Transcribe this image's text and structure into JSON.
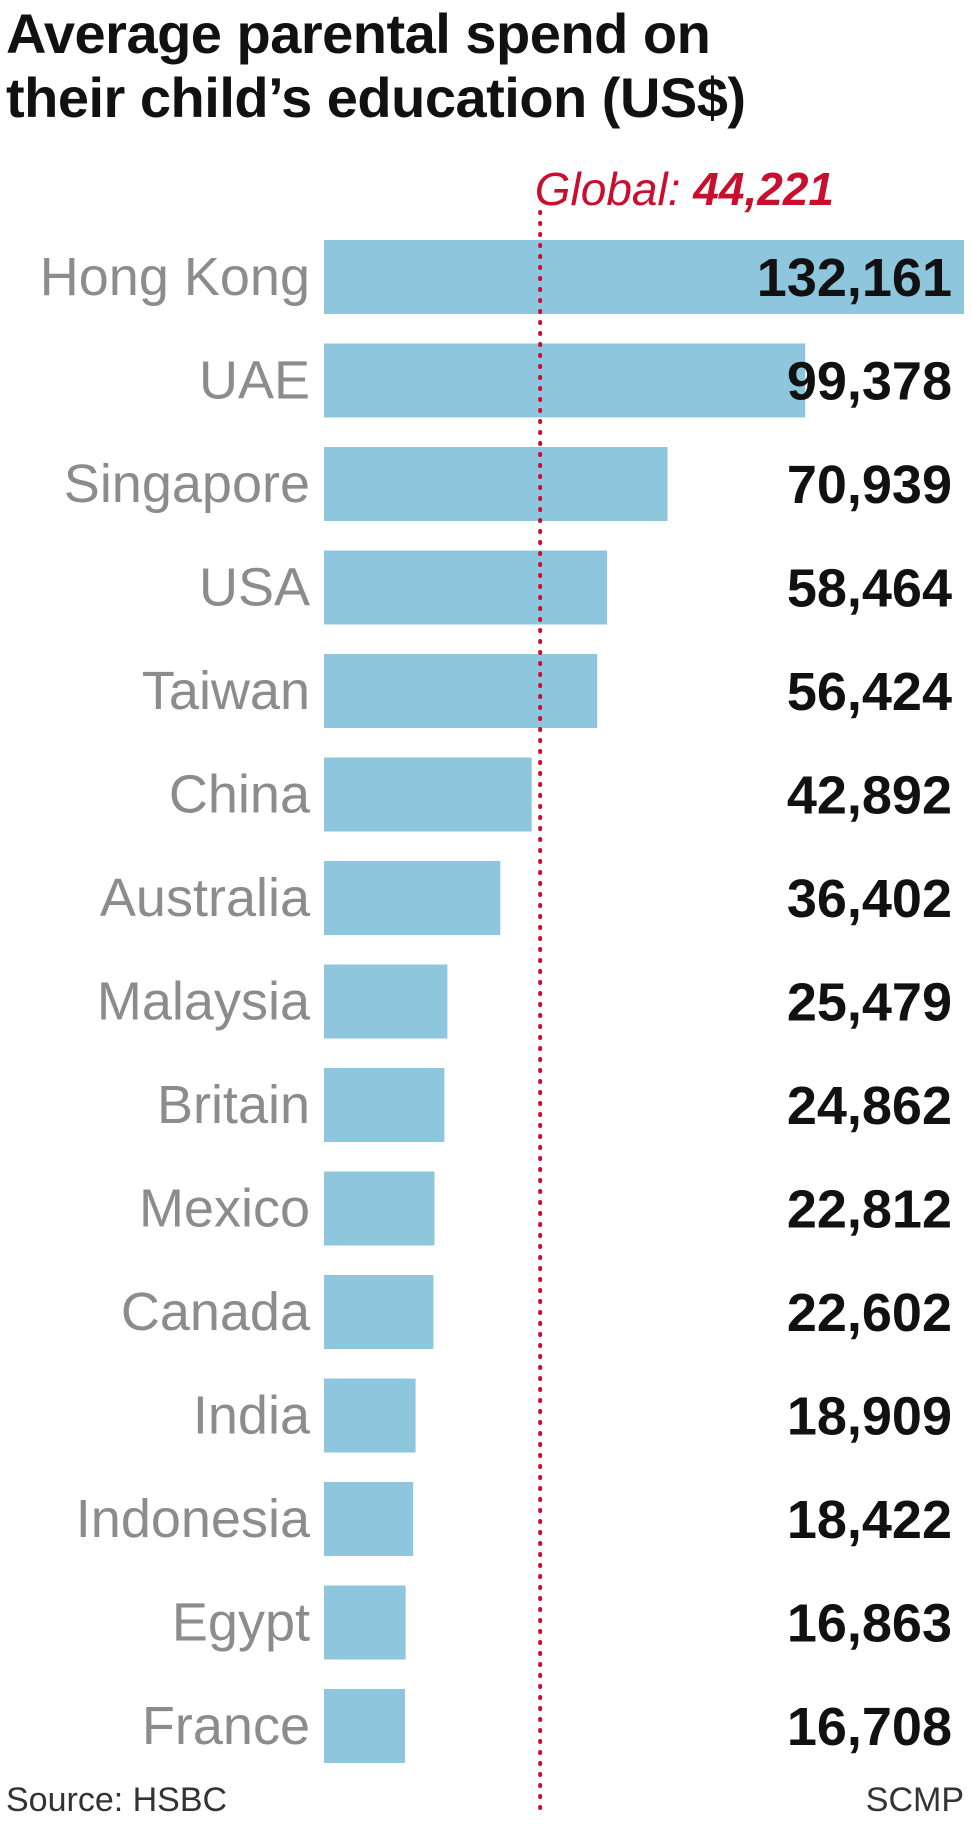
{
  "title_line1": "Average parental spend on",
  "title_line2": "their child’s education (US$)",
  "source": "Source: HSBC",
  "credit": "SCMP",
  "colors": {
    "bar": "#8ec6de",
    "reference": "#c8102e",
    "label": "#8c8c8c",
    "value": "#111111"
  },
  "chart_data": {
    "type": "bar",
    "orientation": "horizontal",
    "categories": [
      "Hong Kong",
      "UAE",
      "Singapore",
      "USA",
      "Taiwan",
      "China",
      "Australia",
      "Malaysia",
      "Britain",
      "Mexico",
      "Canada",
      "India",
      "Indonesia",
      "Egypt",
      "France"
    ],
    "values": [
      132161,
      99378,
      70939,
      58464,
      56424,
      42892,
      36402,
      25479,
      24862,
      22812,
      22602,
      18909,
      18422,
      16863,
      16708
    ],
    "value_labels": [
      "132,161",
      "99,378",
      "70,939",
      "58,464",
      "56,424",
      "42,892",
      "36,402",
      "25,479",
      "24,862",
      "22,812",
      "22,602",
      "18,909",
      "18,422",
      "16,863",
      "16,708"
    ],
    "reference_line": {
      "label": "Global:",
      "value": 44221,
      "value_label": "44,221",
      "style": "dotted"
    },
    "xlim": [
      0,
      132161
    ],
    "grid": false,
    "legend": "none"
  }
}
